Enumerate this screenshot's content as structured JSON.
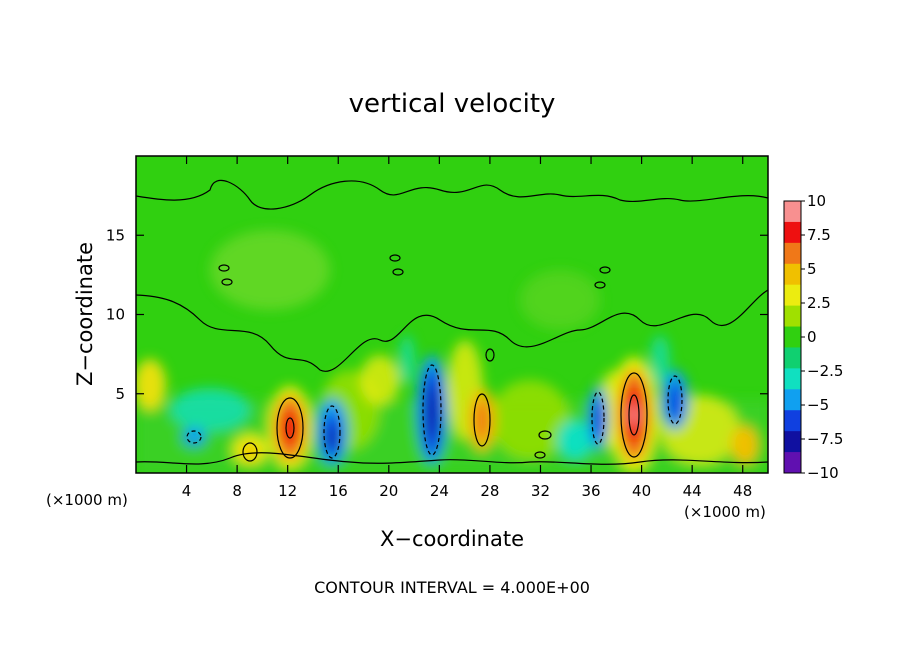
{
  "chart_data": {
    "type": "heatmap",
    "title": "vertical velocity",
    "xlabel": "X−coordinate",
    "ylabel": "Z−coordinate",
    "x_unit_left": "(×1000 m)",
    "x_unit_right": "(×1000 m)",
    "footer": "CONTOUR INTERVAL = 4.000E+00",
    "xlim": [
      0,
      50
    ],
    "ylim": [
      0,
      20
    ],
    "x_ticks": [
      4,
      8,
      12,
      16,
      20,
      24,
      28,
      32,
      36,
      40,
      44,
      48
    ],
    "x_tick_labels": [
      "4",
      "8",
      "12",
      "16",
      "20",
      "24",
      "28",
      "32",
      "36",
      "40",
      "44",
      "48"
    ],
    "y_ticks": [
      5,
      10,
      15
    ],
    "y_tick_labels": [
      "5",
      "10",
      "15"
    ],
    "contour_interval": 4.0,
    "colorbar": {
      "range": [
        -10,
        10
      ],
      "tick_values": [
        10,
        7.5,
        5,
        2.5,
        0,
        -2.5,
        -5,
        -7.5,
        -10
      ],
      "tick_labels": [
        "10",
        "7.5",
        "5",
        "2.5",
        "0",
        "−2.5",
        "−5",
        "−7.5",
        "−10"
      ],
      "colors": [
        "#f89090",
        "#ee1010",
        "#f07818",
        "#f0c000",
        "#ecec10",
        "#a0e000",
        "#30d010",
        "#10d070",
        "#10e0c0",
        "#10a0f0",
        "#1040e0",
        "#1010a0",
        "#6010b0"
      ]
    },
    "features": [
      {
        "x": 12.2,
        "z": 2.8,
        "peak": 9.5
      },
      {
        "x": 39.5,
        "z": 3.8,
        "peak": 10.0
      },
      {
        "x": 23.2,
        "z": 3.5,
        "peak": -8.5
      },
      {
        "x": 15.5,
        "z": 2.4,
        "peak": -8.0
      },
      {
        "x": 36.5,
        "z": 3.4,
        "peak": -7.5
      },
      {
        "x": 42.5,
        "z": 4.6,
        "peak": -6.5
      },
      {
        "x": 27.3,
        "z": 3.3,
        "peak": 5.5
      },
      {
        "x": 9.0,
        "z": 1.4,
        "peak": 4.0
      },
      {
        "x": 4.6,
        "z": 2.2,
        "peak": -3.5
      }
    ]
  }
}
